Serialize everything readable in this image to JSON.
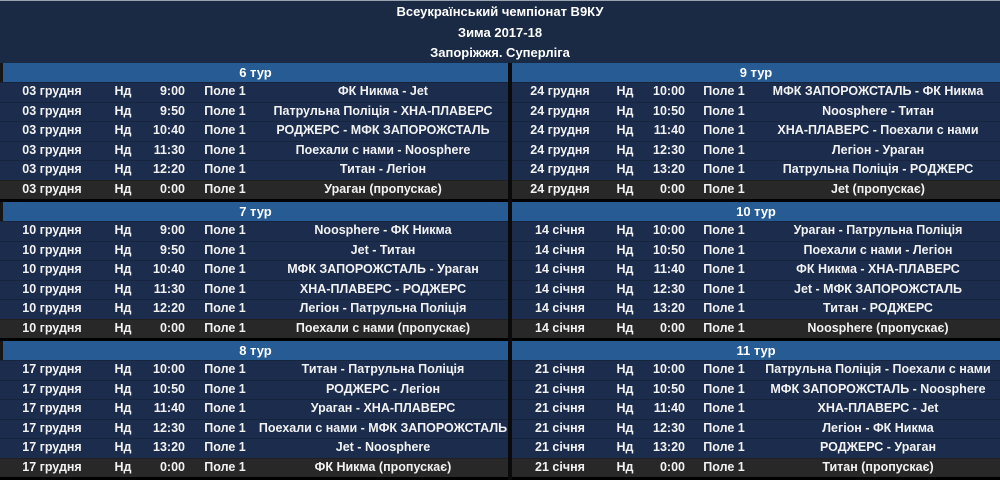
{
  "header": {
    "title": "Всеукраїнський чемпіонат В9КУ",
    "season": "Зима 2017-18",
    "league": "Запоріжжя. Суперліга"
  },
  "colors": {
    "header_bg": "#1a2a44",
    "band_bg": "#275b94",
    "row_bg": "#1b2c4c",
    "skip_row_bg": "#282828",
    "divider": "#0a0a0a",
    "text": "#f2f2f2"
  },
  "tours": [
    {
      "label": "6 тур",
      "side": "left",
      "rows": [
        {
          "date": "03 грудня",
          "day": "Нд",
          "time": "9:00",
          "field": "Поле 1",
          "match": "ФК Никма - Jet",
          "skip": false
        },
        {
          "date": "03 грудня",
          "day": "Нд",
          "time": "9:50",
          "field": "Поле 1",
          "match": "Патрульна Поліція - ХНА-ПЛАВЕРС",
          "skip": false
        },
        {
          "date": "03 грудня",
          "day": "Нд",
          "time": "10:40",
          "field": "Поле 1",
          "match": "РОДЖЕРС - МФК ЗАПОРОЖСТАЛЬ",
          "skip": false
        },
        {
          "date": "03 грудня",
          "day": "Нд",
          "time": "11:30",
          "field": "Поле 1",
          "match": "Поехали с нами - Noosphere",
          "skip": false
        },
        {
          "date": "03 грудня",
          "day": "Нд",
          "time": "12:20",
          "field": "Поле 1",
          "match": "Титан - Легіон",
          "skip": false
        },
        {
          "date": "03 грудня",
          "day": "Нд",
          "time": "0:00",
          "field": "Поле 1",
          "match": "Ураган (пропускає)",
          "skip": true
        }
      ]
    },
    {
      "label": "7 тур",
      "side": "left",
      "rows": [
        {
          "date": "10 грудня",
          "day": "Нд",
          "time": "9:00",
          "field": "Поле 1",
          "match": "Noosphere - ФК Никма",
          "skip": false
        },
        {
          "date": "10 грудня",
          "day": "Нд",
          "time": "9:50",
          "field": "Поле 1",
          "match": "Jet - Титан",
          "skip": false
        },
        {
          "date": "10 грудня",
          "day": "Нд",
          "time": "10:40",
          "field": "Поле 1",
          "match": "МФК ЗАПОРОЖСТАЛЬ - Ураган",
          "skip": false
        },
        {
          "date": "10 грудня",
          "day": "Нд",
          "time": "11:30",
          "field": "Поле 1",
          "match": "ХНА-ПЛАВЕРС - РОДЖЕРС",
          "skip": false
        },
        {
          "date": "10 грудня",
          "day": "Нд",
          "time": "12:20",
          "field": "Поле 1",
          "match": "Легіон - Патрульна Поліція",
          "skip": false
        },
        {
          "date": "10 грудня",
          "day": "Нд",
          "time": "0:00",
          "field": "Поле 1",
          "match": "Поехали с нами (пропускає)",
          "skip": true
        }
      ]
    },
    {
      "label": "8 тур",
      "side": "left",
      "rows": [
        {
          "date": "17 грудня",
          "day": "Нд",
          "time": "10:00",
          "field": "Поле 1",
          "match": "Титан - Патрульна Поліція",
          "skip": false
        },
        {
          "date": "17 грудня",
          "day": "Нд",
          "time": "10:50",
          "field": "Поле 1",
          "match": "РОДЖЕРС - Легіон",
          "skip": false
        },
        {
          "date": "17 грудня",
          "day": "Нд",
          "time": "11:40",
          "field": "Поле 1",
          "match": "Ураган - ХНА-ПЛАВЕРС",
          "skip": false
        },
        {
          "date": "17 грудня",
          "day": "Нд",
          "time": "12:30",
          "field": "Поле 1",
          "match": "Поехали с нами - МФК ЗАПОРОЖСТАЛЬ",
          "skip": false
        },
        {
          "date": "17 грудня",
          "day": "Нд",
          "time": "13:20",
          "field": "Поле 1",
          "match": "Jet - Noosphere",
          "skip": false
        },
        {
          "date": "17 грудня",
          "day": "Нд",
          "time": "0:00",
          "field": "Поле 1",
          "match": "ФК Никма (пропускає)",
          "skip": true
        }
      ]
    },
    {
      "label": "9 тур",
      "side": "right",
      "rows": [
        {
          "date": "24 грудня",
          "day": "Нд",
          "time": "10:00",
          "field": "Поле 1",
          "match": "МФК ЗАПОРОЖСТАЛЬ - ФК Никма",
          "skip": false
        },
        {
          "date": "24 грудня",
          "day": "Нд",
          "time": "10:50",
          "field": "Поле 1",
          "match": "Noosphere - Титан",
          "skip": false
        },
        {
          "date": "24 грудня",
          "day": "Нд",
          "time": "11:40",
          "field": "Поле 1",
          "match": "ХНА-ПЛАВЕРС - Поехали с нами",
          "skip": false
        },
        {
          "date": "24 грудня",
          "day": "Нд",
          "time": "12:30",
          "field": "Поле 1",
          "match": "Легіон - Ураган",
          "skip": false
        },
        {
          "date": "24 грудня",
          "day": "Нд",
          "time": "13:20",
          "field": "Поле 1",
          "match": "Патрульна Поліція - РОДЖЕРС",
          "skip": false
        },
        {
          "date": "24 грудня",
          "day": "Нд",
          "time": "0:00",
          "field": "Поле 1",
          "match": "Jet (пропускає)",
          "skip": true
        }
      ]
    },
    {
      "label": "10 тур",
      "side": "right",
      "rows": [
        {
          "date": "14 січня",
          "day": "Нд",
          "time": "10:00",
          "field": "Поле 1",
          "match": "Ураган - Патрульна Поліція",
          "skip": false
        },
        {
          "date": "14 січня",
          "day": "Нд",
          "time": "10:50",
          "field": "Поле 1",
          "match": "Поехали с нами - Легіон",
          "skip": false
        },
        {
          "date": "14 січня",
          "day": "Нд",
          "time": "11:40",
          "field": "Поле 1",
          "match": "ФК Никма - ХНА-ПЛАВЕРС",
          "skip": false
        },
        {
          "date": "14 січня",
          "day": "Нд",
          "time": "12:30",
          "field": "Поле 1",
          "match": "Jet - МФК ЗАПОРОЖСТАЛЬ",
          "skip": false
        },
        {
          "date": "14 січня",
          "day": "Нд",
          "time": "13:20",
          "field": "Поле 1",
          "match": "Титан - РОДЖЕРС",
          "skip": false
        },
        {
          "date": "14 січня",
          "day": "Нд",
          "time": "0:00",
          "field": "Поле 1",
          "match": "Noosphere (пропускає)",
          "skip": true
        }
      ]
    },
    {
      "label": "11 тур",
      "side": "right",
      "rows": [
        {
          "date": "21 січня",
          "day": "Нд",
          "time": "10:00",
          "field": "Поле 1",
          "match": "Патрульна Поліція - Поехали с нами",
          "skip": false
        },
        {
          "date": "21 січня",
          "day": "Нд",
          "time": "10:50",
          "field": "Поле 1",
          "match": "МФК ЗАПОРОЖСТАЛЬ - Noosphere",
          "skip": false
        },
        {
          "date": "21 січня",
          "day": "Нд",
          "time": "11:40",
          "field": "Поле 1",
          "match": "ХНА-ПЛАВЕРС - Jet",
          "skip": false
        },
        {
          "date": "21 січня",
          "day": "Нд",
          "time": "12:30",
          "field": "Поле 1",
          "match": "Легіон - ФК Никма",
          "skip": false
        },
        {
          "date": "21 січня",
          "day": "Нд",
          "time": "13:20",
          "field": "Поле 1",
          "match": "РОДЖЕРС - Ураган",
          "skip": false
        },
        {
          "date": "21 січня",
          "day": "Нд",
          "time": "0:00",
          "field": "Поле 1",
          "match": "Титан (пропускає)",
          "skip": true
        }
      ]
    }
  ]
}
